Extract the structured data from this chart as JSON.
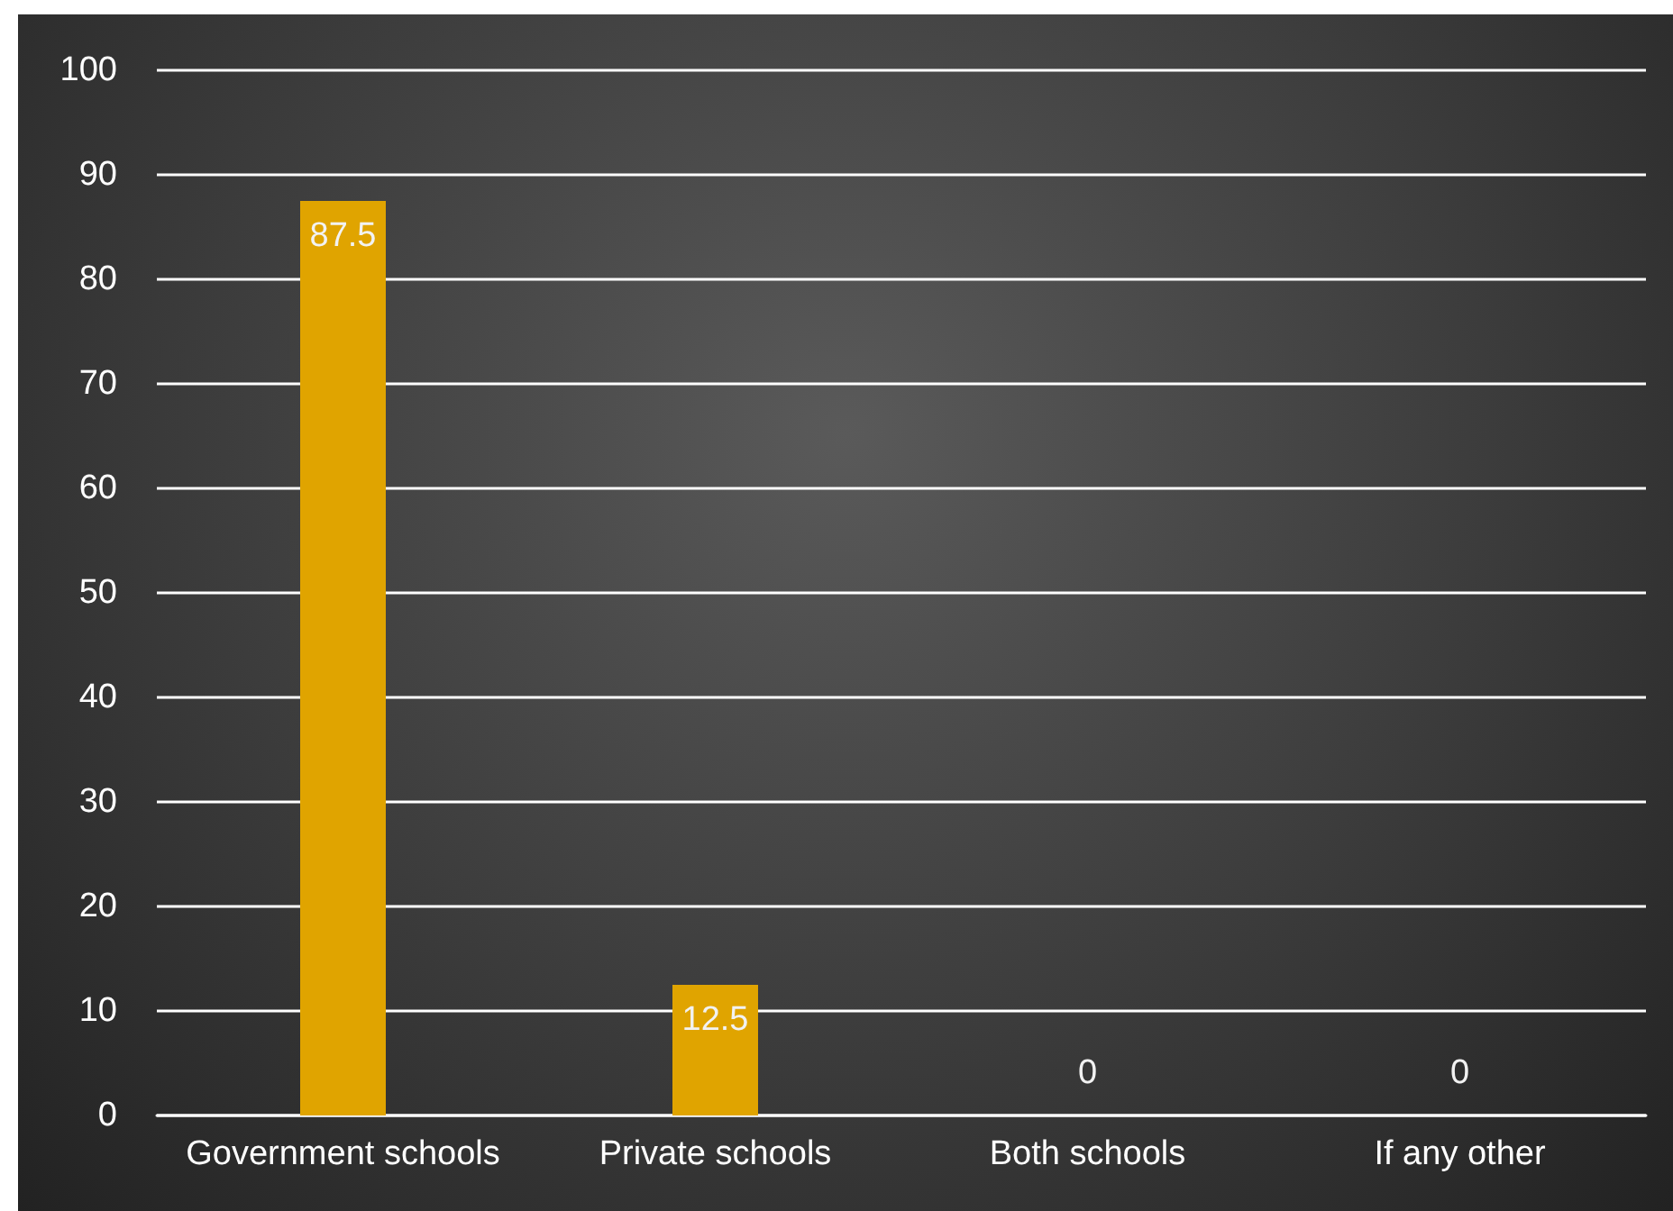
{
  "chart_data": {
    "type": "bar",
    "categories": [
      "Government schools",
      "Private schools",
      "Both schools",
      "If any other"
    ],
    "values": [
      87.5,
      12.5,
      0,
      0
    ],
    "color": "#e0a400",
    "ylim": [
      0,
      100
    ],
    "yticks": [
      0,
      10,
      20,
      30,
      40,
      50,
      60,
      70,
      80,
      90,
      100
    ],
    "grid": "y",
    "data_labels": true
  }
}
